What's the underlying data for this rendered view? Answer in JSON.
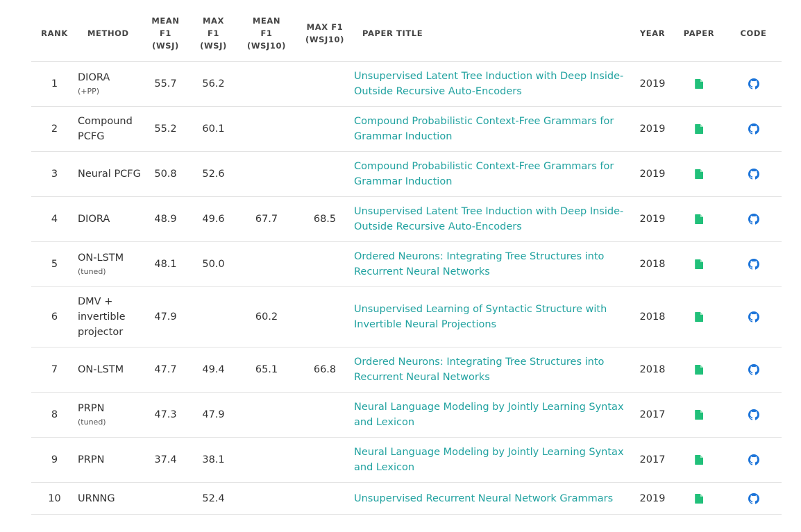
{
  "headers": {
    "rank": "RANK",
    "method": "METHOD",
    "mean_f1_wsj": [
      "MEAN",
      "F1",
      "(WSJ)"
    ],
    "max_f1_wsj": [
      "MAX",
      "F1",
      "(WSJ)"
    ],
    "mean_f1_wsj10": [
      "MEAN",
      "F1",
      "(WSJ10)"
    ],
    "max_f1_wsj10": [
      "MAX F1",
      "(WSJ10)"
    ],
    "paper_title": "PAPER TITLE",
    "year": "YEAR",
    "paper": "PAPER",
    "code": "CODE"
  },
  "colors": {
    "link": "#21a2a0",
    "paper_icon": "#21c07a",
    "code_icon": "#1a73d9"
  },
  "icons": {
    "paper": "file-icon",
    "code": "github-icon"
  },
  "rows": [
    {
      "rank": "1",
      "method": "DIORA",
      "note": "(+PP)",
      "mean_wsj": "55.7",
      "max_wsj": "56.2",
      "mean_wsj10": "",
      "max_wsj10": "",
      "title": "Unsupervised Latent Tree Induction with Deep Inside-Outside Recursive Auto-Encoders",
      "year": "2019"
    },
    {
      "rank": "2",
      "method": "Compound PCFG",
      "note": "",
      "mean_wsj": "55.2",
      "max_wsj": "60.1",
      "mean_wsj10": "",
      "max_wsj10": "",
      "title": "Compound Probabilistic Context-Free Grammars for Grammar Induction",
      "year": "2019"
    },
    {
      "rank": "3",
      "method": "Neural PCFG",
      "note": "",
      "mean_wsj": "50.8",
      "max_wsj": "52.6",
      "mean_wsj10": "",
      "max_wsj10": "",
      "title": "Compound Probabilistic Context-Free Grammars for Grammar Induction",
      "year": "2019"
    },
    {
      "rank": "4",
      "method": "DIORA",
      "note": "",
      "mean_wsj": "48.9",
      "max_wsj": "49.6",
      "mean_wsj10": "67.7",
      "max_wsj10": "68.5",
      "title": "Unsupervised Latent Tree Induction with Deep Inside-Outside Recursive Auto-Encoders",
      "year": "2019"
    },
    {
      "rank": "5",
      "method": "ON-LSTM",
      "note": "(tuned)",
      "mean_wsj": "48.1",
      "max_wsj": "50.0",
      "mean_wsj10": "",
      "max_wsj10": "",
      "title": "Ordered Neurons: Integrating Tree Structures into Recurrent Neural Networks",
      "year": "2018"
    },
    {
      "rank": "6",
      "method": "DMV + invertible projector",
      "note": "",
      "mean_wsj": "47.9",
      "max_wsj": "",
      "mean_wsj10": "60.2",
      "max_wsj10": "",
      "title": "Unsupervised Learning of Syntactic Structure with Invertible Neural Projections",
      "year": "2018"
    },
    {
      "rank": "7",
      "method": "ON-LSTM",
      "note": "",
      "mean_wsj": "47.7",
      "max_wsj": "49.4",
      "mean_wsj10": "65.1",
      "max_wsj10": "66.8",
      "title": "Ordered Neurons: Integrating Tree Structures into Recurrent Neural Networks",
      "year": "2018"
    },
    {
      "rank": "8",
      "method": "PRPN",
      "note": "(tuned)",
      "mean_wsj": "47.3",
      "max_wsj": "47.9",
      "mean_wsj10": "",
      "max_wsj10": "",
      "title": "Neural Language Modeling by Jointly Learning Syntax and Lexicon",
      "year": "2017"
    },
    {
      "rank": "9",
      "method": "PRPN",
      "note": "",
      "mean_wsj": "37.4",
      "max_wsj": "38.1",
      "mean_wsj10": "",
      "max_wsj10": "",
      "title": "Neural Language Modeling by Jointly Learning Syntax and Lexicon",
      "year": "2017"
    },
    {
      "rank": "10",
      "method": "URNNG",
      "note": "",
      "mean_wsj": "",
      "max_wsj": "52.4",
      "mean_wsj10": "",
      "max_wsj10": "",
      "title": "Unsupervised Recurrent Neural Network Grammars",
      "year": "2019"
    }
  ]
}
